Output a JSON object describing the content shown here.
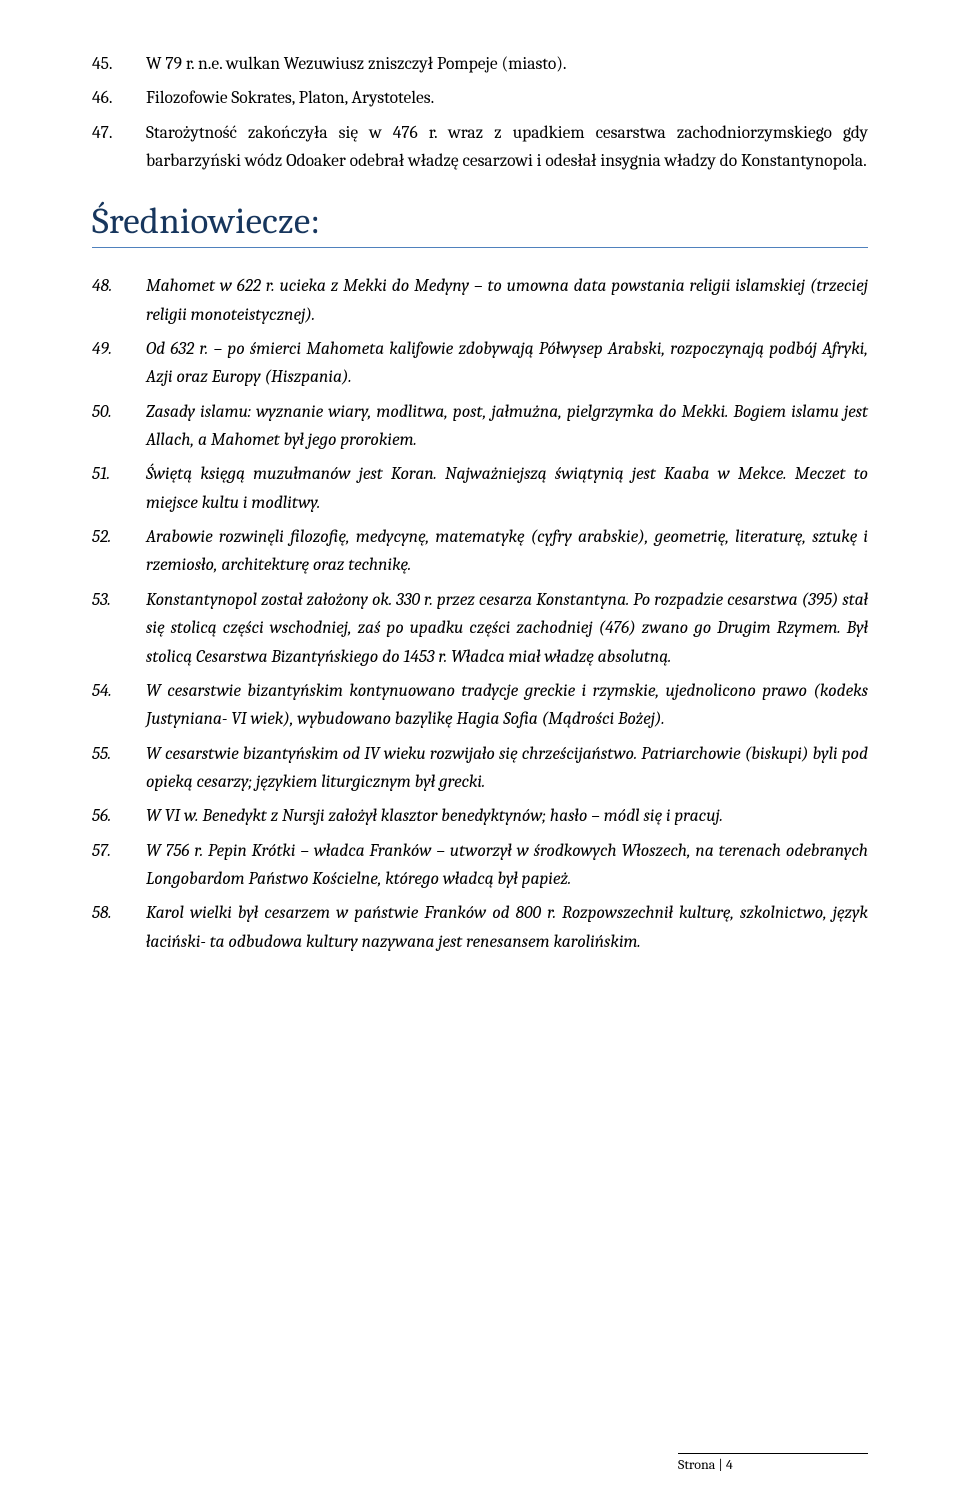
{
  "items_top": [
    {
      "num": "45.",
      "text": "W 79 r. n.e. wulkan Wezuwiusz zniszczył Pompeje (miasto)."
    },
    {
      "num": "46.",
      "text": "Filozofowie Sokrates, Platon, Arystoteles."
    },
    {
      "num": "47.",
      "text": "Starożytność zakończyła się w 476 r. wraz z upadkiem cesarstwa zachodniorzymskiego gdy barbarzyński wódz Odoaker odebrał władzę cesarzowi i odesłał insygnia władzy do Konstantynopola."
    }
  ],
  "section_heading": "Średniowiecze:",
  "items_main": [
    {
      "num": "48.",
      "text": "Mahomet w 622 r. ucieka z Mekki do Medyny – to umowna data powstania religii islamskiej (trzeciej religii monoteistycznej).",
      "italic": true
    },
    {
      "num": "49.",
      "text": "Od 632 r. – po śmierci Mahometa kalifowie zdobywają Półwysep Arabski, rozpoczynają podbój Afryki, Azji oraz Europy (Hiszpania).",
      "italic": true
    },
    {
      "num": "50.",
      "text": "Zasady islamu: wyznanie wiary, modlitwa, post, jałmużna, pielgrzymka do Mekki. Bogiem islamu jest Allach, a Mahomet był jego prorokiem.",
      "italic": true
    },
    {
      "num": "51.",
      "text": "Świętą księgą muzułmanów jest Koran. Najważniejszą świątynią jest Kaaba w Mekce. Meczet to miejsce kultu i modlitwy.",
      "italic": true
    },
    {
      "num": "52.",
      "text": "Arabowie rozwinęli filozofię, medycynę, matematykę (cyfry arabskie), geometrię, literaturę, sztukę i rzemiosło, architekturę oraz technikę.",
      "italic": true
    },
    {
      "num": "53.",
      "text": "Konstantynopol został założony ok. 330 r. przez cesarza Konstantyna. Po rozpadzie cesarstwa (395) stał się stolicą części wschodniej, zaś po upadku części zachodniej (476) zwano go Drugim Rzymem. Był stolicą Cesarstwa Bizantyńskiego do 1453 r. Władca miał władzę absolutną.",
      "italic": true
    },
    {
      "num": "54.",
      "text": "W cesarstwie bizantyńskim kontynuowano tradycje greckie i rzymskie, ujednolicono prawo (kodeks Justyniana- VI wiek), wybudowano bazylikę Hagia Sofia (Mądrości Bożej).",
      "italic": true
    },
    {
      "num": "55.",
      "text": "W cesarstwie bizantyńskim od IV wieku rozwijało się chrześcijaństwo. Patriarchowie (biskupi) byli pod opieką cesarzy; językiem liturgicznym był grecki.",
      "italic": true
    },
    {
      "num": "56.",
      "text": "W VI w. Benedykt z Nursji założył klasztor benedyktynów; hasło – módl się i pracuj.",
      "italic": true
    },
    {
      "num": "57.",
      "text": "W 756 r. Pepin Krótki – władca Franków – utworzył w środkowych Włoszech, na terenach odebranych Longobardom Państwo Kościelne, którego władcą był papież.",
      "italic": true
    },
    {
      "num": "58.",
      "text": "Karol wielki był cesarzem w państwie Franków od 800 r. Rozpowszechnił kulturę, szkolnictwo, język łaciński- ta odbudowa kultury nazywana jest renesansem karolińskim.",
      "italic": true
    }
  ],
  "footer": {
    "label": "Strona | ",
    "page_no": "4"
  },
  "colors": {
    "heading_color": "#17365d",
    "divider_color": "#4f81bd",
    "text_color": "#000000",
    "background": "#ffffff"
  }
}
